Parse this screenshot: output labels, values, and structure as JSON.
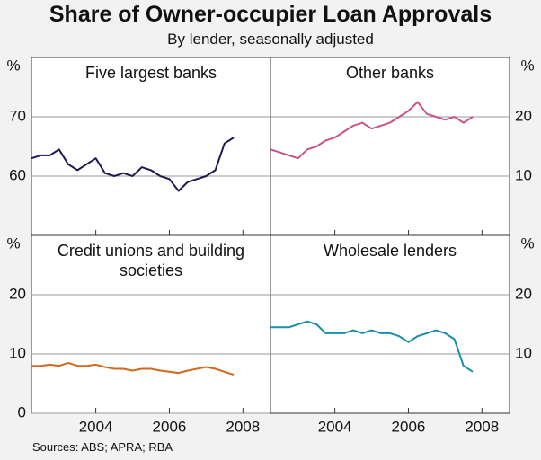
{
  "title": "Share of Owner-occupier Loan Approvals",
  "subtitle": "By lender, seasonally adjusted",
  "source": "Sources: ABS; APRA; RBA",
  "chart_data": [
    {
      "type": "line",
      "title": "Five largest banks",
      "y_unit": "%",
      "color": "#1f1a4f",
      "x": [
        2002.25,
        2002.5,
        2002.75,
        2003,
        2003.25,
        2003.5,
        2003.75,
        2004,
        2004.25,
        2004.5,
        2004.75,
        2005,
        2005.25,
        2005.5,
        2005.75,
        2006,
        2006.25,
        2006.5,
        2006.75,
        2007,
        2007.25,
        2007.5,
        2007.75
      ],
      "values": [
        63,
        63.5,
        63.5,
        64.5,
        62,
        61,
        62,
        63,
        60.5,
        60,
        60.5,
        60,
        61.5,
        61,
        60,
        59.5,
        57.5,
        59,
        59.5,
        60,
        61,
        65.5,
        66.5
      ],
      "xlim": [
        2002.25,
        2008.75
      ],
      "xticks": [
        2004,
        2006,
        2008
      ],
      "ylim": [
        50,
        80
      ],
      "yticks": [
        60,
        70
      ],
      "grid": true
    },
    {
      "type": "line",
      "title": "Other banks",
      "y_unit": "%",
      "color": "#c8548e",
      "x": [
        2002.25,
        2002.5,
        2002.75,
        2003,
        2003.25,
        2003.5,
        2003.75,
        2004,
        2004.25,
        2004.5,
        2004.75,
        2005,
        2005.25,
        2005.5,
        2005.75,
        2006,
        2006.25,
        2006.5,
        2006.75,
        2007,
        2007.25,
        2007.5,
        2007.75
      ],
      "values": [
        14.5,
        14,
        13.5,
        13,
        14.5,
        15,
        16,
        16.5,
        17.5,
        18.5,
        19,
        18,
        18.5,
        19,
        20,
        21,
        22.5,
        20.5,
        20,
        19.5,
        20,
        19,
        20
      ],
      "xlim": [
        2002.25,
        2008.75
      ],
      "xticks": [
        2004,
        2006,
        2008
      ],
      "ylim": [
        0,
        30
      ],
      "yticks": [
        10,
        20
      ],
      "grid": true
    },
    {
      "type": "line",
      "title": "Credit unions and building societies",
      "y_unit": "%",
      "color": "#d2691e",
      "x": [
        2002.25,
        2002.5,
        2002.75,
        2003,
        2003.25,
        2003.5,
        2003.75,
        2004,
        2004.25,
        2004.5,
        2004.75,
        2005,
        2005.25,
        2005.5,
        2005.75,
        2006,
        2006.25,
        2006.5,
        2006.75,
        2007,
        2007.25,
        2007.5,
        2007.75
      ],
      "values": [
        8,
        8,
        8.2,
        8,
        8.5,
        8,
        8,
        8.2,
        7.8,
        7.5,
        7.5,
        7.2,
        7.5,
        7.5,
        7.2,
        7,
        6.8,
        7.2,
        7.5,
        7.8,
        7.5,
        7,
        6.5
      ],
      "xlim": [
        2002.25,
        2008.75
      ],
      "xticks": [
        2004,
        2006,
        2008
      ],
      "ylim": [
        0,
        30
      ],
      "yticks": [
        0,
        10,
        20
      ],
      "grid": true
    },
    {
      "type": "line",
      "title": "Wholesale lenders",
      "y_unit": "%",
      "color": "#1a8fa8",
      "x": [
        2002.25,
        2002.5,
        2002.75,
        2003,
        2003.25,
        2003.5,
        2003.75,
        2004,
        2004.25,
        2004.5,
        2004.75,
        2005,
        2005.25,
        2005.5,
        2005.75,
        2006,
        2006.25,
        2006.5,
        2006.75,
        2007,
        2007.25,
        2007.5,
        2007.75
      ],
      "values": [
        14.5,
        14.5,
        14.5,
        15,
        15.5,
        15,
        13.5,
        13.5,
        13.5,
        14,
        13.5,
        14,
        13.5,
        13.5,
        13,
        12,
        13,
        13.5,
        14,
        13.5,
        12.5,
        8,
        7
      ],
      "xlim": [
        2002.25,
        2008.75
      ],
      "xticks": [
        2004,
        2006,
        2008
      ],
      "ylim": [
        0,
        30
      ],
      "yticks": [
        10,
        20
      ],
      "grid": true
    }
  ]
}
